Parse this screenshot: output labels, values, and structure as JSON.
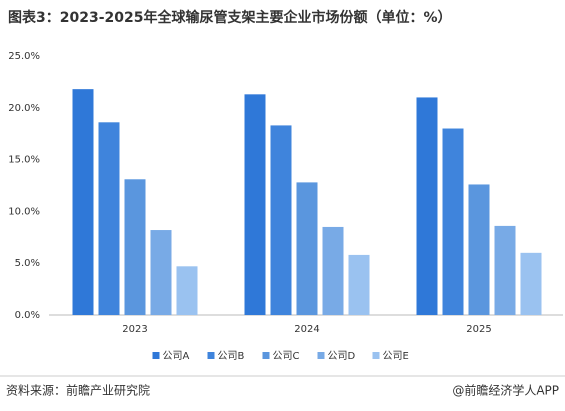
{
  "chart_data": {
    "type": "bar",
    "title": "图表3：2023-2025年全球输尿管支架主要企业市场份额（单位：%）",
    "categories": [
      "2023",
      "2024",
      "2025"
    ],
    "series": [
      {
        "name": "公司A",
        "color": "#2f78d8",
        "values": [
          21.8,
          21.3,
          21.0
        ]
      },
      {
        "name": "公司B",
        "color": "#3f84dc",
        "values": [
          18.6,
          18.3,
          18.0
        ]
      },
      {
        "name": "公司C",
        "color": "#5a96de",
        "values": [
          13.1,
          12.8,
          12.6
        ]
      },
      {
        "name": "公司D",
        "color": "#78aae6",
        "values": [
          8.2,
          8.5,
          8.6
        ]
      },
      {
        "name": "公司E",
        "color": "#9ac2f0",
        "values": [
          4.7,
          5.8,
          6.0
        ]
      }
    ],
    "ylim": [
      0,
      25
    ],
    "yticks": [
      {
        "value": 0,
        "label": "0.0%"
      },
      {
        "value": 5,
        "label": "5.0%"
      },
      {
        "value": 10,
        "label": "10.0%"
      },
      {
        "value": 15,
        "label": "15.0%"
      },
      {
        "value": 20,
        "label": "20.0%"
      },
      {
        "value": 25,
        "label": "25.0%"
      }
    ],
    "grid": false,
    "legend": "bottom",
    "source": "资料来源：前瞻产业研究院",
    "credit": "@前瞻经济学人APP"
  }
}
